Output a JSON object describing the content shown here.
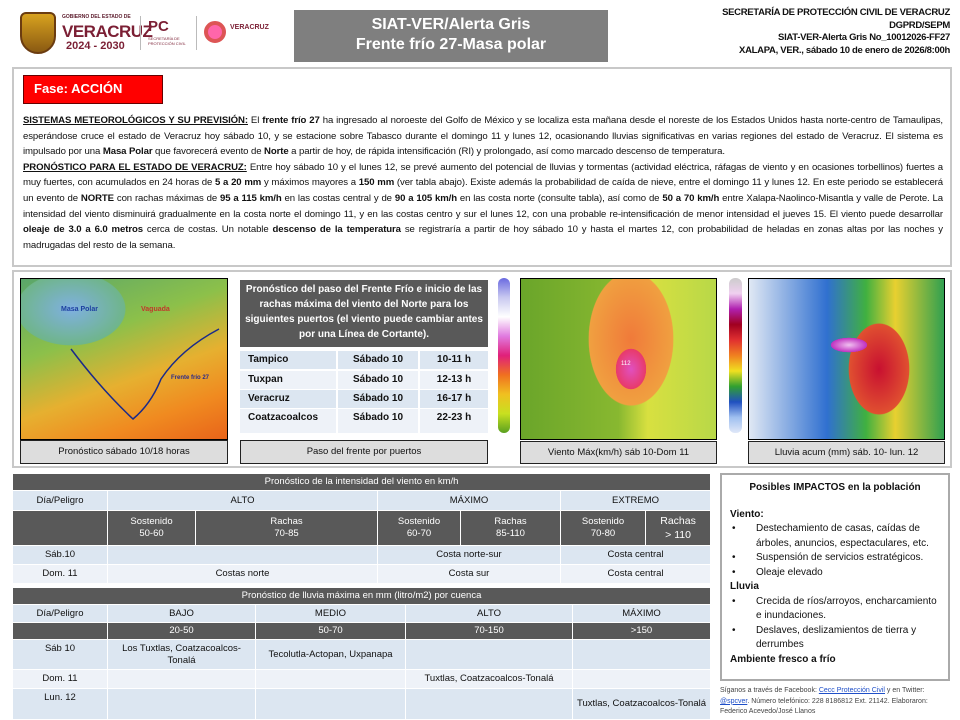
{
  "header": {
    "logo_gob": "GOBIERNO DEL ESTADO DE",
    "logo_veracruz": "VERACRUZ",
    "logo_years": "2024 - 2030",
    "logo_pc": "PC",
    "logo_pc_sub": "SECRETARÍA DE PROTECCIÓN CIVIL",
    "logo_pcv": "VERACRUZ",
    "title_line1": "SIAT-VER/Alerta Gris",
    "title_line2": "Frente frío 27-Masa polar",
    "right": [
      "SECRETARÍA DE PROTECCIÓN CIVIL DE VERACRUZ",
      "DGPRD/SEPM",
      "SIAT-VER-Alerta Gris No_10012026-FF27",
      "XALAPA, VER., sábado 10 de enero de 2026/8:00h"
    ]
  },
  "phase": {
    "label": "Fase: ACCIÓN",
    "color": "#ff0000"
  },
  "paragraphs": [
    [
      {
        "t": "SISTEMAS METEOROLÓGICOS Y SU PREVISIÓN:",
        "s": "u"
      },
      {
        "t": " El "
      },
      {
        "t": "frente frío 27",
        "s": "b"
      },
      {
        "t": " ha ingresado al noroeste del Golfo de México y se localiza esta mañana desde el noreste de los Estados Unidos hasta norte-centro de Tamaulipas, esperándose cruce el estado de Veracruz hoy sábado 10, y se estacione sobre Tabasco durante el domingo 11 y lunes 12, ocasionando lluvias significativas en varias regiones del estado de Veracruz. El sistema es impulsado por una "
      },
      {
        "t": "Masa Polar",
        "s": "b"
      },
      {
        "t": " que favorecerá evento de "
      },
      {
        "t": "Norte",
        "s": "b"
      },
      {
        "t": " a partir de hoy, de rápida intensificación (RI) y prolongado, así como marcado descenso de temperatura."
      }
    ],
    [
      {
        "t": "PRONÓSTICO PARA EL ESTADO DE VERACRUZ:",
        "s": "u"
      },
      {
        "t": " Entre hoy sábado 10 y el lunes 12, se prevé aumento del potencial de lluvias y tormentas (actividad eléctrica, ráfagas de viento y en ocasiones torbellinos) fuertes a muy fuertes, con acumulados en 24 horas de "
      },
      {
        "t": "5 a 20 mm",
        "s": "b"
      },
      {
        "t": " y máximos mayores a "
      },
      {
        "t": "150 mm",
        "s": "b"
      },
      {
        "t": " (ver tabla abajo). Existe además la probabilidad de caída de nieve, entre el domingo 11 y lunes 12. En este periodo se establecerá un evento de "
      },
      {
        "t": "NORTE",
        "s": "b"
      },
      {
        "t": " con rachas máximas de "
      },
      {
        "t": "95 a 115 km/h",
        "s": "b"
      },
      {
        "t": " en las costas central y de "
      },
      {
        "t": "90 a 105 km/h",
        "s": "b"
      },
      {
        "t": " en las costa norte (consulte tabla), así como de "
      },
      {
        "t": "50 a 70 km/h",
        "s": "b"
      },
      {
        "t": " entre Xalapa-Naolinco-Misantla y valle de Perote. La intensidad del viento disminuirá gradualmente en la costa norte el domingo 11, y en las costas centro y sur el lunes 12, con una probable re-intensificación de menor intensidad el jueves 15. El viento puede desarrollar "
      },
      {
        "t": "oleaje de 3.0 a 6.0 metros",
        "s": "b"
      },
      {
        "t": " cerca de costas. Un notable "
      },
      {
        "t": "descenso de la temperatura",
        "s": "b"
      },
      {
        "t": " se registraría a partir de hoy sábado 10 y hasta el martes 12, con probabilidad de heladas en zonas altas por las noches y madrugadas del resto de la semana."
      }
    ]
  ],
  "map1": {
    "labels": [
      "Masa Polar",
      "Vaguada",
      "Frente frío 27"
    ],
    "caption": "Pronóstico sábado 10/18 horas"
  },
  "ports": {
    "header": "Pronóstico del paso del Frente Frío e inicio de las rachas máxima del viento del Norte para los siguientes puertos (el viento puede cambiar antes por una Línea de Cortante).",
    "rows": [
      {
        "port": "Tampico",
        "day": "Sábado 10",
        "time": "10-11 h"
      },
      {
        "port": "Tuxpan",
        "day": "Sábado 10",
        "time": "12-13 h"
      },
      {
        "port": "Veracruz",
        "day": "Sábado 10",
        "time": "16-17 h"
      },
      {
        "port": "Coatzacoalcos",
        "day": "Sábado 10",
        "time": "22-23 h"
      }
    ],
    "caption": "Paso del frente por puertos"
  },
  "map2": {
    "label": "112",
    "caption": "Viento Máx(km/h) sáb 10-Dom 11"
  },
  "map3": {
    "caption": "Lluvia acum (mm) sáb. 10- lun. 12"
  },
  "wind_table": {
    "title": "Pronóstico de la intensidad del viento en km/h",
    "head": [
      "Día/Peligro",
      "ALTO",
      "MÁXIMO",
      "EXTREMO"
    ],
    "sub": [
      [
        "Sostenido",
        "50-60"
      ],
      [
        "Rachas",
        "70-85"
      ],
      [
        "Sostenido",
        "60-70"
      ],
      [
        "Rachas",
        "85-110"
      ],
      [
        "Sostenido",
        "70-80"
      ],
      [
        "Rachas",
        "> 110"
      ]
    ],
    "rows": [
      {
        "day": "Sáb.10",
        "alto": "",
        "maximo": "Costa norte-sur",
        "extremo": "Costa central"
      },
      {
        "day": "Dom. 11",
        "alto": "Costas norte",
        "maximo": "Costa sur",
        "extremo": "Costa central"
      }
    ]
  },
  "rain_table": {
    "title": "Pronóstico de lluvia máxima en mm (litro/m2) por cuenca",
    "head": [
      "Día/Peligro",
      "BAJO",
      "MEDIO",
      "ALTO",
      "MÁXIMO"
    ],
    "ranges": [
      "",
      "20-50",
      "50-70",
      "70-150",
      ">150"
    ],
    "rows": [
      [
        "Sáb 10",
        "Los Tuxtlas, Coatzacoalcos-Tonalá",
        "Tecolutla-Actopan, Uxpanapa",
        "",
        ""
      ],
      [
        "Dom. 11",
        "",
        "",
        "Tuxtlas, Coatzacoalcos-Tonalá",
        ""
      ],
      [
        "Lun. 12",
        "",
        "",
        "",
        "Tuxtlas, Coatzacoalcos-Tonalá"
      ]
    ]
  },
  "impacts": {
    "title": "Posibles IMPACTOS en la población",
    "viento_label": "Viento:",
    "viento": [
      "Destechamiento de casas, caídas de árboles, anuncios, espectaculares, etc.",
      "Suspensión de servicios estratégicos.",
      "Oleaje elevado"
    ],
    "lluvia_label": "Lluvia",
    "lluvia": [
      "Crecida de ríos/arroyos, encharcamiento e inundaciones.",
      "Deslaves, deslizamientos de tierra y derrumbes"
    ],
    "ambiente": "Ambiente fresco a frío"
  },
  "footer": {
    "t1": "Síganos a través de Facebook: ",
    "fb": "Cecc Protección Civil",
    "t2": " y en Twitter: ",
    "tw": "@spcver",
    "t3": ". Número telefónico: 228 8186812 Ext. 21142. Elaboraron: Federico Acevedo/José Llanos"
  }
}
